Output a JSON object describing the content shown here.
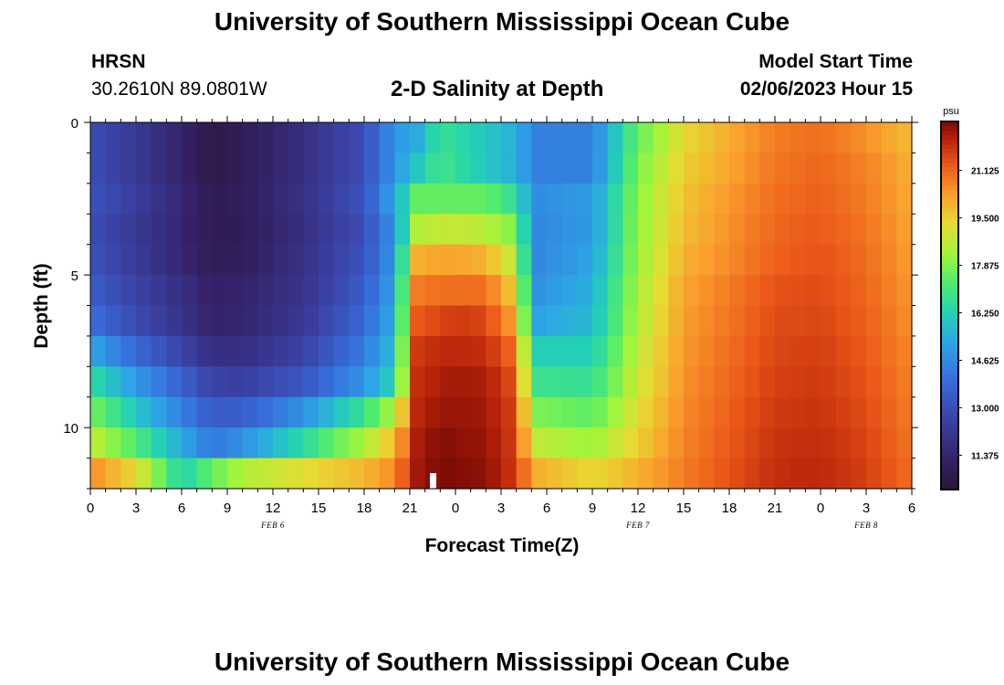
{
  "page": {
    "title_top": "University of Southern Mississippi Ocean Cube",
    "title_bottom": "University of Southern Mississippi Ocean Cube",
    "station": "HRSN",
    "coords": "30.2610N  89.0801W",
    "chart_title": "2-D Salinity at Depth",
    "model_label": "Model Start Time",
    "model_time": "02/06/2023 Hour 15"
  },
  "chart_data": {
    "type": "heatmap",
    "title": "2-D Salinity at Depth",
    "xlabel": "Forecast Time(Z)",
    "ylabel": "Depth (ft)",
    "units": "psu",
    "x_range_hours": [
      0,
      54
    ],
    "y_range_ft": [
      0,
      12
    ],
    "x_ticks": [
      {
        "h": 0,
        "label": "0"
      },
      {
        "h": 3,
        "label": "3"
      },
      {
        "h": 6,
        "label": "6"
      },
      {
        "h": 9,
        "label": "9"
      },
      {
        "h": 12,
        "label": "12"
      },
      {
        "h": 15,
        "label": "15"
      },
      {
        "h": 18,
        "label": "18"
      },
      {
        "h": 21,
        "label": "21"
      },
      {
        "h": 24,
        "label": "0"
      },
      {
        "h": 27,
        "label": "3"
      },
      {
        "h": 30,
        "label": "6"
      },
      {
        "h": 33,
        "label": "9"
      },
      {
        "h": 36,
        "label": "12"
      },
      {
        "h": 39,
        "label": "15"
      },
      {
        "h": 42,
        "label": "18"
      },
      {
        "h": 45,
        "label": "21"
      },
      {
        "h": 48,
        "label": "0"
      },
      {
        "h": 51,
        "label": "3"
      },
      {
        "h": 54,
        "label": "6"
      }
    ],
    "y_ticks": [
      {
        "v": 0,
        "label": "0"
      },
      {
        "v": 5,
        "label": "5"
      },
      {
        "v": 10,
        "label": "10"
      }
    ],
    "dates": [
      {
        "h": 12,
        "label": "FEB 6"
      },
      {
        "h": 36,
        "label": "FEB 7"
      },
      {
        "h": 51,
        "label": "FEB 8"
      }
    ],
    "colorbar": {
      "label": "psu",
      "range": [
        10.2,
        22.8
      ],
      "ticks": [
        "21.125",
        "19.500",
        "17.875",
        "16.250",
        "14.625",
        "13.000",
        "11.375"
      ],
      "tick_values": [
        21.125,
        19.5,
        17.875,
        16.25,
        14.625,
        13.0,
        11.375
      ]
    },
    "marker_hour": 22.5,
    "depth_levels_ft": [
      0.5,
      1.5,
      2.5,
      3.5,
      4.5,
      5.5,
      6.5,
      7.5,
      8.5,
      9.5,
      10.5,
      11.5
    ],
    "time_knots_hours": [
      0,
      3,
      6,
      8,
      10,
      14,
      18,
      20,
      21.5,
      23,
      24,
      26,
      27.5,
      29.5,
      33,
      36,
      39,
      42,
      45,
      48,
      51,
      54
    ],
    "salinity_rows": [
      [
        13.0,
        12.2,
        11.3,
        10.6,
        10.9,
        11.8,
        13.0,
        14.9,
        15.4,
        16.8,
        16.5,
        16.0,
        15.6,
        14.4,
        14.4,
        17.5,
        19.3,
        20.1,
        20.8,
        21.0,
        20.5,
        19.8
      ],
      [
        13.0,
        12.2,
        11.3,
        10.6,
        10.9,
        11.8,
        13.0,
        14.9,
        16.0,
        17.0,
        16.6,
        16.0,
        15.6,
        14.4,
        14.4,
        17.8,
        19.5,
        20.2,
        20.9,
        21.1,
        20.7,
        20.0
      ],
      [
        13.2,
        12.4,
        11.5,
        10.8,
        11.0,
        11.9,
        13.2,
        15.3,
        17.5,
        17.5,
        17.5,
        17.5,
        16.8,
        14.7,
        15.0,
        18.0,
        19.7,
        20.4,
        21.0,
        21.2,
        20.8,
        20.1
      ],
      [
        13.0,
        12.2,
        11.4,
        10.8,
        10.9,
        11.8,
        13.0,
        14.9,
        18.5,
        18.8,
        18.8,
        18.6,
        18.0,
        14.6,
        15.0,
        18.1,
        19.8,
        20.5,
        21.1,
        21.3,
        20.9,
        20.2
      ],
      [
        13.2,
        12.3,
        11.5,
        10.9,
        11.0,
        11.9,
        13.2,
        15.0,
        20.0,
        20.2,
        20.2,
        20.0,
        18.9,
        14.6,
        15.2,
        18.2,
        20.0,
        20.6,
        21.2,
        21.4,
        21.0,
        20.3
      ],
      [
        13.5,
        12.6,
        11.8,
        11.2,
        11.3,
        12.0,
        13.5,
        15.2,
        20.8,
        21.0,
        21.0,
        21.0,
        19.8,
        14.8,
        15.5,
        18.4,
        20.2,
        20.8,
        21.4,
        21.5,
        21.1,
        20.4
      ],
      [
        14.0,
        12.9,
        12.0,
        11.3,
        11.4,
        12.2,
        13.8,
        15.4,
        21.3,
        21.6,
        21.8,
        21.6,
        20.5,
        15.2,
        15.7,
        18.5,
        20.3,
        20.9,
        21.5,
        21.6,
        21.2,
        20.5
      ],
      [
        15.3,
        13.8,
        12.7,
        11.8,
        11.8,
        12.6,
        14.3,
        15.8,
        21.8,
        22.1,
        22.1,
        22.0,
        21.2,
        16.2,
        16.2,
        18.7,
        20.4,
        21.0,
        21.6,
        21.7,
        21.3,
        20.6
      ],
      [
        16.6,
        15.0,
        13.6,
        12.6,
        12.5,
        13.3,
        14.9,
        16.3,
        22.0,
        22.3,
        22.4,
        22.3,
        21.6,
        16.8,
        16.7,
        18.9,
        20.5,
        21.1,
        21.7,
        21.8,
        21.4,
        20.7
      ],
      [
        17.8,
        16.0,
        14.4,
        13.4,
        13.5,
        14.8,
        16.8,
        18.5,
        22.1,
        22.5,
        22.5,
        22.4,
        21.8,
        17.8,
        17.4,
        19.2,
        20.6,
        21.2,
        21.8,
        21.9,
        21.5,
        20.8
      ],
      [
        18.8,
        17.2,
        15.3,
        14.2,
        14.8,
        16.5,
        18.4,
        19.8,
        22.3,
        22.7,
        22.6,
        22.5,
        21.9,
        18.7,
        18.2,
        19.5,
        20.7,
        21.3,
        21.9,
        22.0,
        21.6,
        20.9
      ],
      [
        20.6,
        19.3,
        16.2,
        17.5,
        18.5,
        19.2,
        19.9,
        20.6,
        22.4,
        22.8,
        22.7,
        22.6,
        22.0,
        20.0,
        19.3,
        20.0,
        20.8,
        21.4,
        22.0,
        22.1,
        21.7,
        21.0
      ]
    ]
  }
}
